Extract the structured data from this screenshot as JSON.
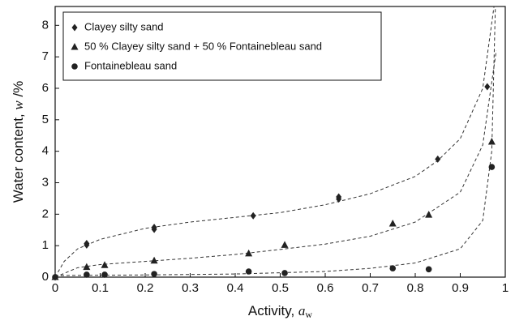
{
  "chart_data": {
    "type": "scatter",
    "xlabel": [
      "Activity, ",
      "a",
      "w"
    ],
    "ylabel": [
      "Water content, ",
      "w",
      " /%"
    ],
    "xlim": [
      0,
      1
    ],
    "ylim": [
      0,
      8.6
    ],
    "xticks": [
      0,
      0.1,
      0.2,
      0.3,
      0.4,
      0.5,
      0.6,
      0.7,
      0.8,
      0.9,
      1
    ],
    "yticks": [
      0,
      1,
      2,
      3,
      4,
      5,
      6,
      7,
      8
    ],
    "legend": "upper left",
    "series": [
      {
        "name": "Clayey silty sand",
        "marker": "diamond",
        "color": "#222222",
        "x": [
          0,
          0.07,
          0.07,
          0.22,
          0.22,
          0.44,
          0.63,
          0.63,
          0.85,
          0.96
        ],
        "values": [
          0,
          1.07,
          1.02,
          1.58,
          1.52,
          1.95,
          2.55,
          2.48,
          3.75,
          6.05
        ]
      },
      {
        "name": "50 % Clayey silty sand + 50 % Fontainebleau sand",
        "marker": "triangle",
        "color": "#222222",
        "x": [
          0,
          0.07,
          0.11,
          0.22,
          0.43,
          0.51,
          0.75,
          0.83,
          0.97
        ],
        "values": [
          0,
          0.32,
          0.38,
          0.52,
          0.75,
          1.02,
          1.7,
          1.98,
          4.3
        ]
      },
      {
        "name": "Fontainebleau sand",
        "marker": "circle",
        "color": "#222222",
        "x": [
          0,
          0.07,
          0.11,
          0.22,
          0.43,
          0.51,
          0.75,
          0.83,
          0.97
        ],
        "values": [
          0,
          0.08,
          0.08,
          0.1,
          0.18,
          0.13,
          0.28,
          0.25,
          3.5
        ]
      }
    ],
    "fits": [
      {
        "x": [
          0,
          0.02,
          0.05,
          0.1,
          0.2,
          0.3,
          0.4,
          0.5,
          0.6,
          0.7,
          0.8,
          0.85,
          0.9,
          0.95,
          0.975
        ],
        "values": [
          0,
          0.5,
          0.9,
          1.2,
          1.55,
          1.75,
          1.9,
          2.05,
          2.3,
          2.65,
          3.2,
          3.7,
          4.4,
          6.0,
          8.6
        ]
      },
      {
        "x": [
          0,
          0.05,
          0.1,
          0.2,
          0.3,
          0.4,
          0.5,
          0.6,
          0.7,
          0.8,
          0.9,
          0.95,
          0.98
        ],
        "values": [
          0,
          0.3,
          0.4,
          0.5,
          0.6,
          0.72,
          0.88,
          1.05,
          1.3,
          1.75,
          2.7,
          4.2,
          7.2
        ]
      },
      {
        "x": [
          0,
          0.2,
          0.4,
          0.6,
          0.7,
          0.8,
          0.9,
          0.95,
          0.97,
          0.978
        ],
        "values": [
          0.05,
          0.07,
          0.1,
          0.18,
          0.28,
          0.45,
          0.9,
          1.8,
          4.0,
          8.6
        ]
      }
    ]
  }
}
